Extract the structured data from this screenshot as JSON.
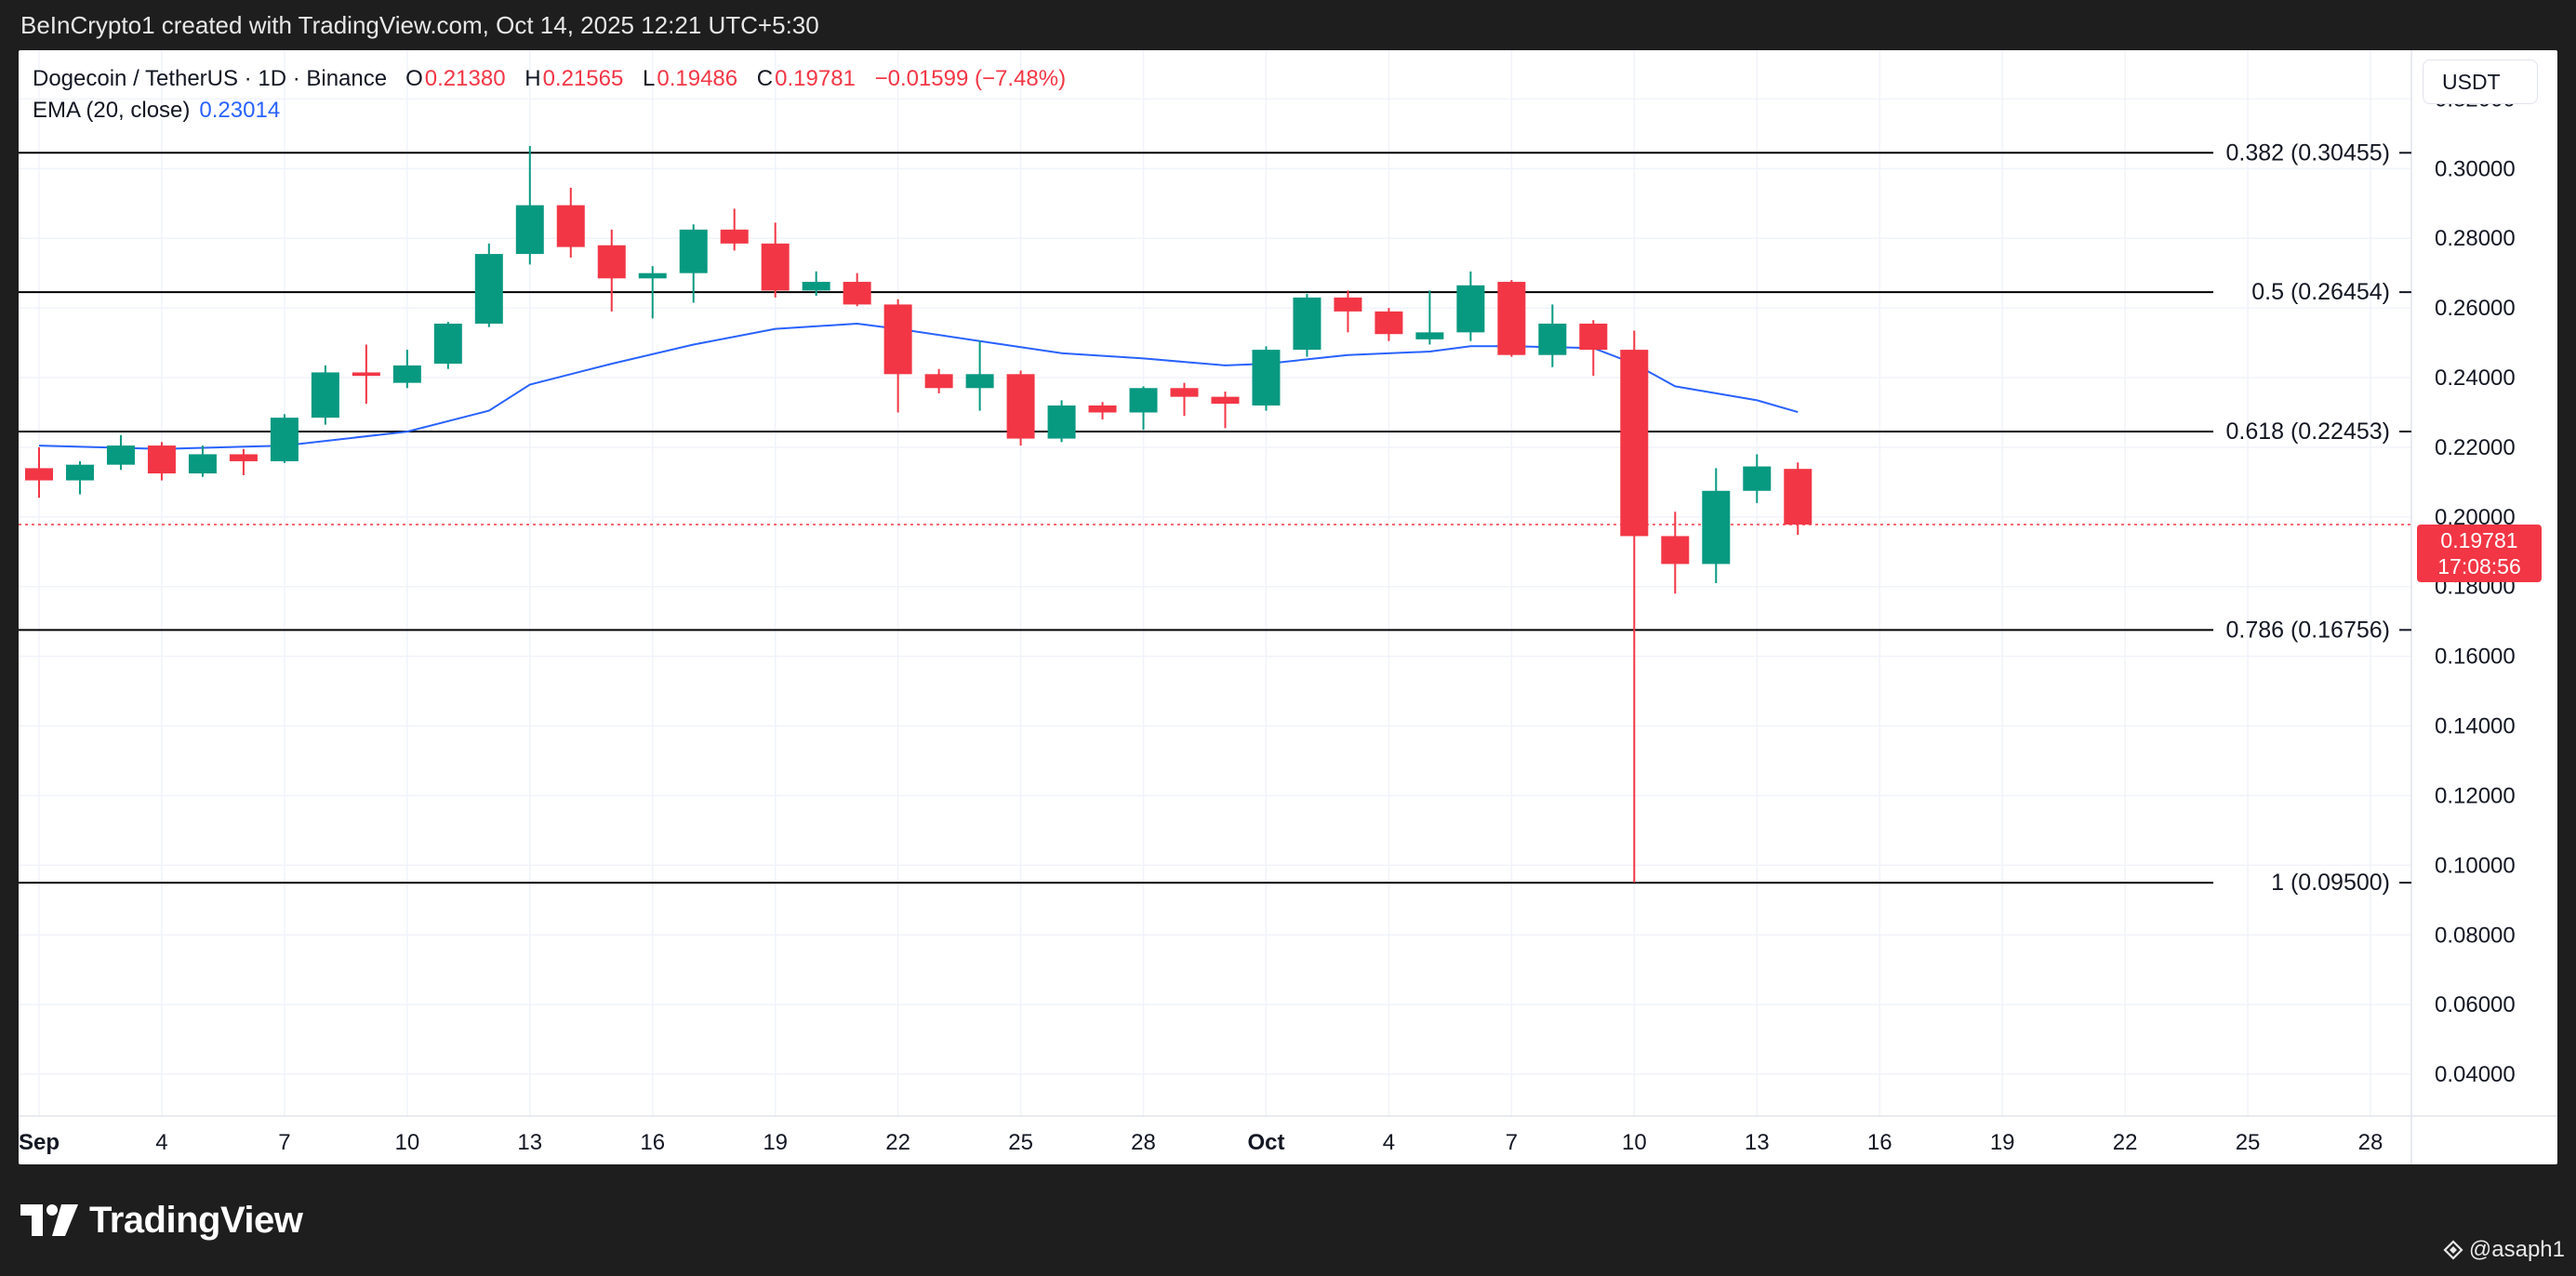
{
  "header": {
    "attribution": "BeInCrypto1 created with TradingView.com, Oct 14, 2025 12:21 UTC+5:30"
  },
  "legend": {
    "symbol": "Dogecoin / TetherUS · 1D · Binance",
    "open_label": "O",
    "open": "0.21380",
    "high_label": "H",
    "high": "0.21565",
    "low_label": "L",
    "low": "0.19486",
    "close_label": "C",
    "close": "0.19781",
    "change": "−0.01599 (−7.48%)",
    "ema_label": "EMA (20, close)",
    "ema_value": "0.23014"
  },
  "currency_button": "USDT",
  "last_price": {
    "price": "0.19781",
    "countdown": "17:08:56"
  },
  "footer": {
    "brand": "TradingView",
    "user": "@asaph1"
  },
  "colors": {
    "up": "#089981",
    "down": "#f23645",
    "ema": "#2962ff",
    "fib": "#000000",
    "grid": "#f0f3fa"
  },
  "chart_data": {
    "type": "candlestick",
    "y_ticks": [
      "0.32000",
      "0.30000",
      "0.28000",
      "0.26000",
      "0.24000",
      "0.22000",
      "0.20000",
      "0.18000",
      "0.16000",
      "0.14000",
      "0.12000",
      "0.10000",
      "0.08000",
      "0.06000",
      "0.04000"
    ],
    "ylim": [
      0.028,
      0.334
    ],
    "x_ticks": [
      {
        "day": 1,
        "label": "Sep"
      },
      {
        "day": 4,
        "label": "4"
      },
      {
        "day": 7,
        "label": "7"
      },
      {
        "day": 10,
        "label": "10"
      },
      {
        "day": 13,
        "label": "13"
      },
      {
        "day": 16,
        "label": "16"
      },
      {
        "day": 19,
        "label": "19"
      },
      {
        "day": 22,
        "label": "22"
      },
      {
        "day": 25,
        "label": "25"
      },
      {
        "day": 28,
        "label": "28"
      },
      {
        "day": 31,
        "label": "Oct"
      },
      {
        "day": 34,
        "label": "4"
      },
      {
        "day": 37,
        "label": "7"
      },
      {
        "day": 40,
        "label": "10"
      },
      {
        "day": 43,
        "label": "13"
      },
      {
        "day": 46,
        "label": "16"
      },
      {
        "day": 49,
        "label": "19"
      },
      {
        "day": 52,
        "label": "22"
      },
      {
        "day": 55,
        "label": "25"
      },
      {
        "day": 58,
        "label": "28"
      }
    ],
    "xlim": [
      0.5,
      59
    ],
    "candles": [
      {
        "date": "2025-09-01",
        "o": 0.214,
        "h": 0.22,
        "l": 0.2055,
        "c": 0.2105
      },
      {
        "date": "2025-09-02",
        "o": 0.2105,
        "h": 0.216,
        "l": 0.2065,
        "c": 0.215
      },
      {
        "date": "2025-09-03",
        "o": 0.215,
        "h": 0.2235,
        "l": 0.2135,
        "c": 0.2205
      },
      {
        "date": "2025-09-04",
        "o": 0.2205,
        "h": 0.2215,
        "l": 0.2105,
        "c": 0.2125
      },
      {
        "date": "2025-09-05",
        "o": 0.2125,
        "h": 0.2205,
        "l": 0.2115,
        "c": 0.218
      },
      {
        "date": "2025-09-06",
        "o": 0.218,
        "h": 0.2195,
        "l": 0.212,
        "c": 0.216
      },
      {
        "date": "2025-09-07",
        "o": 0.216,
        "h": 0.2295,
        "l": 0.2155,
        "c": 0.2285
      },
      {
        "date": "2025-09-08",
        "o": 0.2285,
        "h": 0.2435,
        "l": 0.2265,
        "c": 0.2415
      },
      {
        "date": "2025-09-09",
        "o": 0.2415,
        "h": 0.2495,
        "l": 0.2325,
        "c": 0.2405
      },
      {
        "date": "2025-09-10",
        "o": 0.2385,
        "h": 0.248,
        "l": 0.237,
        "c": 0.2435
      },
      {
        "date": "2025-09-11",
        "o": 0.244,
        "h": 0.256,
        "l": 0.2425,
        "c": 0.2555
      },
      {
        "date": "2025-09-12",
        "o": 0.2555,
        "h": 0.2785,
        "l": 0.2545,
        "c": 0.2755
      },
      {
        "date": "2025-09-13",
        "o": 0.2755,
        "h": 0.3065,
        "l": 0.2725,
        "c": 0.2895
      },
      {
        "date": "2025-09-14",
        "o": 0.2895,
        "h": 0.2945,
        "l": 0.2745,
        "c": 0.2775
      },
      {
        "date": "2025-09-15",
        "o": 0.278,
        "h": 0.2825,
        "l": 0.259,
        "c": 0.2685
      },
      {
        "date": "2025-09-16",
        "o": 0.2685,
        "h": 0.272,
        "l": 0.257,
        "c": 0.27
      },
      {
        "date": "2025-09-17",
        "o": 0.27,
        "h": 0.284,
        "l": 0.2615,
        "c": 0.2825
      },
      {
        "date": "2025-09-18",
        "o": 0.2825,
        "h": 0.2885,
        "l": 0.2765,
        "c": 0.2785
      },
      {
        "date": "2025-09-19",
        "o": 0.2785,
        "h": 0.2845,
        "l": 0.263,
        "c": 0.265
      },
      {
        "date": "2025-09-20",
        "o": 0.265,
        "h": 0.2705,
        "l": 0.2635,
        "c": 0.2675
      },
      {
        "date": "2025-09-21",
        "o": 0.2675,
        "h": 0.27,
        "l": 0.2605,
        "c": 0.261
      },
      {
        "date": "2025-09-22",
        "o": 0.261,
        "h": 0.2625,
        "l": 0.23,
        "c": 0.241
      },
      {
        "date": "2025-09-23",
        "o": 0.241,
        "h": 0.2425,
        "l": 0.2355,
        "c": 0.237
      },
      {
        "date": "2025-09-24",
        "o": 0.237,
        "h": 0.2505,
        "l": 0.2305,
        "c": 0.241
      },
      {
        "date": "2025-09-25",
        "o": 0.241,
        "h": 0.242,
        "l": 0.2205,
        "c": 0.2225
      },
      {
        "date": "2025-09-26",
        "o": 0.2225,
        "h": 0.2335,
        "l": 0.2215,
        "c": 0.232
      },
      {
        "date": "2025-09-27",
        "o": 0.232,
        "h": 0.233,
        "l": 0.228,
        "c": 0.23
      },
      {
        "date": "2025-09-28",
        "o": 0.23,
        "h": 0.2375,
        "l": 0.225,
        "c": 0.237
      },
      {
        "date": "2025-09-29",
        "o": 0.237,
        "h": 0.2385,
        "l": 0.229,
        "c": 0.2345
      },
      {
        "date": "2025-09-30",
        "o": 0.2345,
        "h": 0.236,
        "l": 0.2255,
        "c": 0.2325
      },
      {
        "date": "2025-10-01",
        "o": 0.232,
        "h": 0.249,
        "l": 0.2305,
        "c": 0.248
      },
      {
        "date": "2025-10-02",
        "o": 0.248,
        "h": 0.264,
        "l": 0.246,
        "c": 0.263
      },
      {
        "date": "2025-10-03",
        "o": 0.263,
        "h": 0.265,
        "l": 0.253,
        "c": 0.259
      },
      {
        "date": "2025-10-04",
        "o": 0.259,
        "h": 0.26,
        "l": 0.2505,
        "c": 0.2525
      },
      {
        "date": "2025-10-05",
        "o": 0.251,
        "h": 0.265,
        "l": 0.2495,
        "c": 0.253
      },
      {
        "date": "2025-10-06",
        "o": 0.253,
        "h": 0.2705,
        "l": 0.2505,
        "c": 0.2665
      },
      {
        "date": "2025-10-07",
        "o": 0.2675,
        "h": 0.268,
        "l": 0.246,
        "c": 0.2465
      },
      {
        "date": "2025-10-08",
        "o": 0.2465,
        "h": 0.261,
        "l": 0.243,
        "c": 0.2555
      },
      {
        "date": "2025-10-09",
        "o": 0.2555,
        "h": 0.2565,
        "l": 0.2405,
        "c": 0.248
      },
      {
        "date": "2025-10-10",
        "o": 0.248,
        "h": 0.2535,
        "l": 0.095,
        "c": 0.1945
      },
      {
        "date": "2025-10-11",
        "o": 0.1945,
        "h": 0.2015,
        "l": 0.178,
        "c": 0.1865
      },
      {
        "date": "2025-10-12",
        "o": 0.1865,
        "h": 0.214,
        "l": 0.181,
        "c": 0.2075
      },
      {
        "date": "2025-10-13",
        "o": 0.2075,
        "h": 0.218,
        "l": 0.204,
        "c": 0.2145
      },
      {
        "date": "2025-10-14",
        "o": 0.2138,
        "h": 0.21565,
        "l": 0.19486,
        "c": 0.19781
      }
    ],
    "ema": {
      "name": "EMA (20, close)",
      "points": [
        [
          1,
          0.2205
        ],
        [
          4,
          0.2195
        ],
        [
          7,
          0.2205
        ],
        [
          10,
          0.2245
        ],
        [
          12,
          0.2305
        ],
        [
          13,
          0.238
        ],
        [
          15,
          0.244
        ],
        [
          17,
          0.2495
        ],
        [
          19,
          0.254
        ],
        [
          21,
          0.2555
        ],
        [
          22,
          0.254
        ],
        [
          24,
          0.2505
        ],
        [
          26,
          0.247
        ],
        [
          28,
          0.2455
        ],
        [
          30,
          0.2435
        ],
        [
          31,
          0.244
        ],
        [
          33,
          0.2465
        ],
        [
          35,
          0.2475
        ],
        [
          36,
          0.249
        ],
        [
          37,
          0.249
        ],
        [
          39,
          0.2485
        ],
        [
          40,
          0.244
        ],
        [
          41,
          0.2375
        ],
        [
          43,
          0.2335
        ],
        [
          44,
          0.2301
        ]
      ]
    },
    "fib_levels": [
      {
        "label": "0.382 (0.30455)",
        "value": 0.30455
      },
      {
        "label": "0.5 (0.26454)",
        "value": 0.26454
      },
      {
        "label": "0.618 (0.22453)",
        "value": 0.22453
      },
      {
        "label": "0.786 (0.16756)",
        "value": 0.16756
      },
      {
        "label": "1 (0.09500)",
        "value": 0.095
      }
    ],
    "last_price_line": 0.19781
  }
}
